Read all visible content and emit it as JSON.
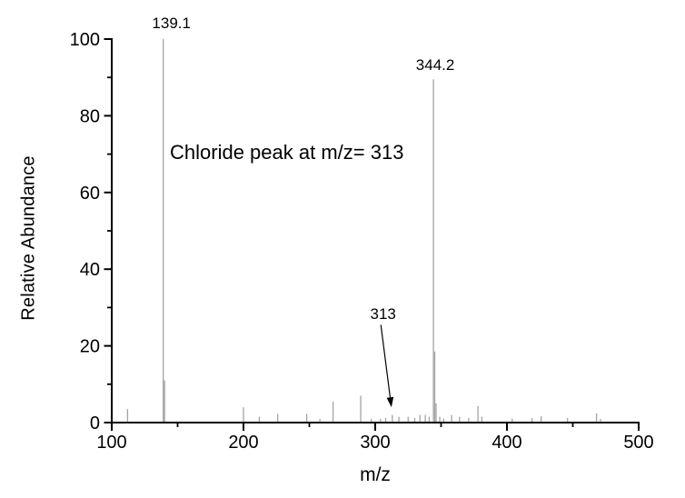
{
  "figure": {
    "background": "#ffffff"
  },
  "chart_data": {
    "type": "bar",
    "subtype": "mass_spectrum_stick_plot",
    "title": "",
    "xlabel": "m/z",
    "ylabel": "Relative Abundance",
    "xlim": [
      100,
      500
    ],
    "ylim": [
      0,
      100
    ],
    "grid": false,
    "legend": null,
    "x_major_ticks": [
      100,
      200,
      300,
      400,
      500
    ],
    "x_minor_ticks": [
      150,
      250,
      350,
      450
    ],
    "y_major_ticks": [
      0,
      20,
      40,
      60,
      80,
      100
    ],
    "y_minor_ticks": [
      10,
      30,
      50,
      70,
      90
    ],
    "colors": {
      "axis": "#000000",
      "peak_line": "#a3a3a3",
      "text": "#000000"
    },
    "peaks": [
      {
        "mz": 112,
        "intensity": 3.5
      },
      {
        "mz": 139.1,
        "intensity": 100
      },
      {
        "mz": 140.1,
        "intensity": 11
      },
      {
        "mz": 200,
        "intensity": 4
      },
      {
        "mz": 212,
        "intensity": 1.5
      },
      {
        "mz": 226,
        "intensity": 2.3
      },
      {
        "mz": 248,
        "intensity": 2.3
      },
      {
        "mz": 258,
        "intensity": 1
      },
      {
        "mz": 268,
        "intensity": 5.5
      },
      {
        "mz": 289,
        "intensity": 7
      },
      {
        "mz": 297,
        "intensity": 1
      },
      {
        "mz": 304,
        "intensity": 1
      },
      {
        "mz": 308,
        "intensity": 1.2
      },
      {
        "mz": 313,
        "intensity": 2
      },
      {
        "mz": 318,
        "intensity": 1.5
      },
      {
        "mz": 325,
        "intensity": 1.5
      },
      {
        "mz": 330,
        "intensity": 1.2
      },
      {
        "mz": 334,
        "intensity": 2
      },
      {
        "mz": 338,
        "intensity": 2
      },
      {
        "mz": 341,
        "intensity": 1.5
      },
      {
        "mz": 344.2,
        "intensity": 89.5
      },
      {
        "mz": 345.2,
        "intensity": 18.5
      },
      {
        "mz": 346.2,
        "intensity": 5
      },
      {
        "mz": 349,
        "intensity": 1.5
      },
      {
        "mz": 352,
        "intensity": 1
      },
      {
        "mz": 358,
        "intensity": 2
      },
      {
        "mz": 364,
        "intensity": 1.5
      },
      {
        "mz": 371,
        "intensity": 1.2
      },
      {
        "mz": 378,
        "intensity": 4.3
      },
      {
        "mz": 381,
        "intensity": 1.5
      },
      {
        "mz": 404,
        "intensity": 1
      },
      {
        "mz": 419,
        "intensity": 1.2
      },
      {
        "mz": 426,
        "intensity": 1.7
      },
      {
        "mz": 446,
        "intensity": 1.2
      },
      {
        "mz": 468,
        "intensity": 2.4
      },
      {
        "mz": 471,
        "intensity": 1
      }
    ],
    "peak_labels": [
      {
        "text": "139.1",
        "mz": 139.1,
        "dx": 9,
        "top": 16
      },
      {
        "text": "344.2",
        "mz": 344.2,
        "dx": 2,
        "top": 62
      }
    ],
    "annotation": {
      "text": "Chloride peak at m/z= 313"
    },
    "arrow": {
      "label": "313",
      "label_pos": {
        "mz": 306,
        "intensity": 28.5
      },
      "from": {
        "mz": 304.3,
        "intensity": 25.5
      },
      "to": {
        "mz": 312.3,
        "intensity": 4.0
      }
    }
  }
}
